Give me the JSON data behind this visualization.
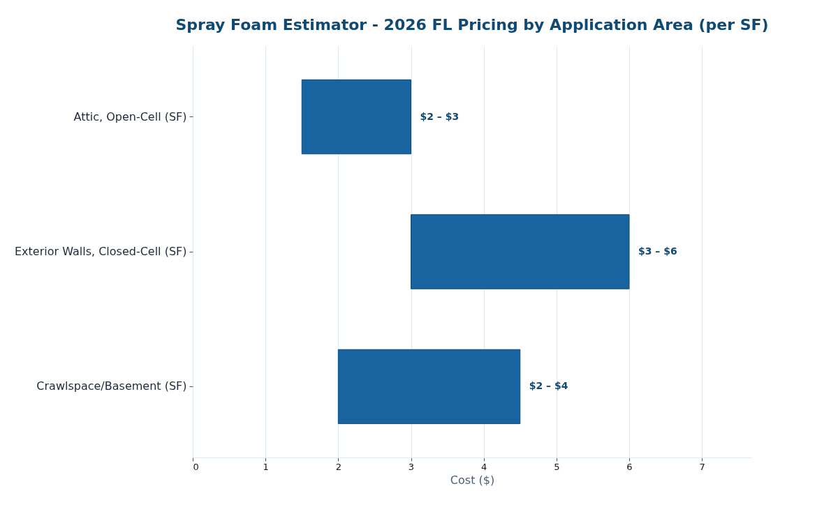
{
  "chart_data": {
    "type": "bar",
    "orientation": "horizontal",
    "title": "Spray Foam Estimator - 2026 FL Pricing by Application Area (per SF)",
    "xlabel": "Cost ($)",
    "categories": [
      "Attic, Open-Cell (SF)",
      "Exterior Walls, Closed-Cell (SF)",
      "Crawlspace/Basement (SF)"
    ],
    "series": [
      {
        "color": "#1764a0",
        "values": [
          1.5,
          3,
          2.5
        ],
        "base": [
          1.5,
          3,
          2
        ]
      }
    ],
    "value_labels": [
      "$2 – $3",
      "$3 – $6",
      "$2 – $4"
    ],
    "xlim": [
      0,
      7.68
    ],
    "xticks": [
      0,
      1,
      2,
      3,
      4,
      5,
      6,
      7
    ],
    "grid": "x"
  }
}
